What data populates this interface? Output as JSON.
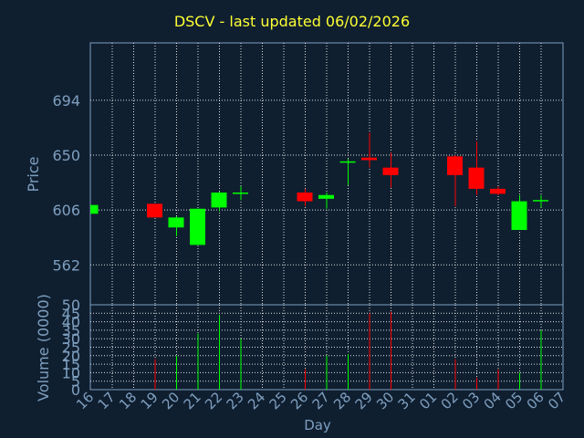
{
  "chart_data": {
    "type": "candlestick",
    "title": "DSCV - last updated 06/02/2026",
    "xlabel": "Day",
    "ylabel_price": "Price",
    "ylabel_volume": "Volume (0000)",
    "x_ticks": [
      "16",
      "17",
      "18",
      "19",
      "20",
      "21",
      "22",
      "23",
      "24",
      "25",
      "26",
      "27",
      "28",
      "29",
      "30",
      "31",
      "01",
      "02",
      "03",
      "04",
      "05",
      "06",
      "07"
    ],
    "price_ticks": [
      562,
      606,
      650,
      694
    ],
    "volume_ticks": [
      0,
      5,
      10,
      15,
      20,
      25,
      30,
      35,
      40,
      45,
      50
    ],
    "price_range": [
      530,
      740
    ],
    "volume_range": [
      0,
      50
    ],
    "grid": true,
    "colors": {
      "up": "#00ff00",
      "down": "#ff0000",
      "background": "#0f1f30",
      "text": "#7f9fbf",
      "title": "#ffff33"
    },
    "candles": [
      {
        "day": "16",
        "open": 603,
        "close": 610,
        "high": 610,
        "low": 603,
        "volume": 0
      },
      {
        "day": "19",
        "open": 611,
        "close": 600,
        "high": 611,
        "low": 600,
        "volume": 18
      },
      {
        "day": "20",
        "open": 592,
        "close": 600,
        "high": 601,
        "low": 585,
        "volume": 20
      },
      {
        "day": "21",
        "open": 578,
        "close": 607,
        "high": 607,
        "low": 578,
        "volume": 33
      },
      {
        "day": "22",
        "open": 608,
        "close": 620,
        "high": 621,
        "low": 605,
        "volume": 44
      },
      {
        "day": "23",
        "open": 619,
        "close": 620,
        "high": 625,
        "low": 614,
        "volume": 30
      },
      {
        "day": "26",
        "open": 620,
        "close": 613,
        "high": 623,
        "low": 609,
        "volume": 12
      },
      {
        "day": "27",
        "open": 615,
        "close": 618,
        "high": 620,
        "low": 607,
        "volume": 20
      },
      {
        "day": "28",
        "open": 645,
        "close": 645,
        "high": 647,
        "low": 626,
        "volume": 21
      },
      {
        "day": "29",
        "open": 648,
        "close": 646,
        "high": 668,
        "low": 640,
        "volume": 45
      },
      {
        "day": "30",
        "open": 640,
        "close": 634,
        "high": 652,
        "low": 624,
        "volume": 46
      },
      {
        "day": "02",
        "open": 649,
        "close": 634,
        "high": 650,
        "low": 609,
        "volume": 18
      },
      {
        "day": "03",
        "open": 640,
        "close": 623,
        "high": 661,
        "low": 618,
        "volume": 7
      },
      {
        "day": "04",
        "open": 623,
        "close": 619,
        "high": 625,
        "low": 618,
        "volume": 12
      },
      {
        "day": "05",
        "open": 590,
        "close": 613,
        "high": 618,
        "low": 590,
        "volume": 10
      },
      {
        "day": "06",
        "open": 613,
        "close": 614,
        "high": 618,
        "low": 608,
        "volume": 35
      }
    ]
  }
}
